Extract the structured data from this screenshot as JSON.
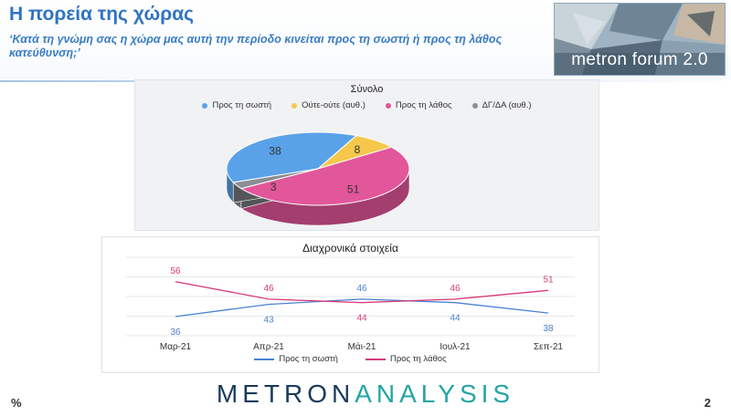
{
  "header": {
    "title": "Η πορεία της χώρας",
    "subtitle": "‘Κατά τη γνώμη σας η χώρα μας αυτή την περίοδο κινείται προς τη σωστή ή προς τη λάθος κατεύθυνση;’",
    "logo_text": "metron forum 2.0"
  },
  "colors": {
    "right_direction": "#5aa2e8",
    "neither": "#f5c84c",
    "wrong_direction": "#e2569a",
    "dk_na": "#8a8d92",
    "line_right": "#4a82d4",
    "line_wrong": "#d63a7a",
    "title_blue": "#2f73c2"
  },
  "chart_data": [
    {
      "type": "pie",
      "title": "Σύνολο",
      "legend_position": "top",
      "labels": [
        "Προς τη σωστή",
        "Ούτε-ούτε (αυθ.)",
        "Προς τη λάθος",
        "ΔΓ/ΔΑ (αυθ.)"
      ],
      "values": [
        38,
        8,
        51,
        3
      ]
    },
    {
      "type": "line",
      "title": "Διαχρονικά στοιχεία",
      "legend_position": "bottom",
      "categories": [
        "Μαρ-21",
        "Απρ-21",
        "Μάι-21",
        "Ιουλ-21",
        "Σεπ-21"
      ],
      "series": [
        {
          "name": "Προς τη σωστή",
          "values": [
            36,
            43,
            46,
            44,
            38
          ]
        },
        {
          "name": "Προς τη λάθος",
          "values": [
            56,
            46,
            44,
            46,
            51
          ]
        }
      ],
      "grid": true
    }
  ],
  "footer": {
    "brand_part1": "METRON",
    "brand_part2": "ANALYSIS",
    "left": "%",
    "page_number": "2"
  }
}
